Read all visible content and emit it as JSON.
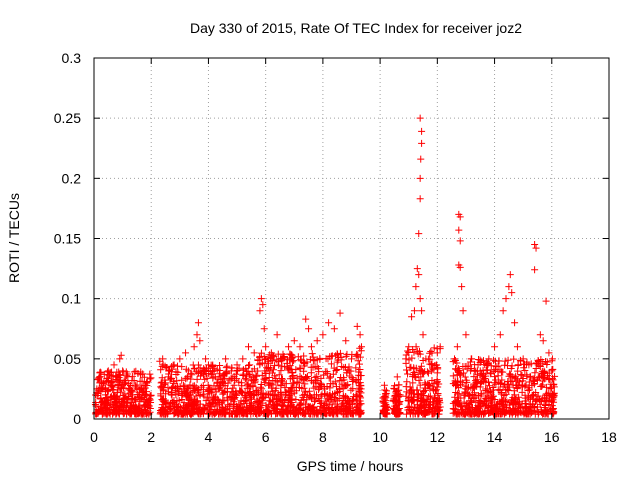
{
  "chart_data": {
    "type": "scatter",
    "title": "Day 330 of 2015, Rate Of TEC Index for receiver joz2",
    "xlabel": "GPS time / hours",
    "ylabel": "ROTI / TECUs",
    "xlim": [
      0,
      18
    ],
    "ylim": [
      0,
      0.3
    ],
    "xticks": [
      0,
      2,
      4,
      6,
      8,
      10,
      12,
      14,
      16,
      18
    ],
    "xtick_labels": [
      "0",
      "2",
      "4",
      "6",
      "8",
      "10",
      "12",
      "14",
      "16",
      "18"
    ],
    "yticks": [
      0,
      0.05,
      0.1,
      0.15,
      0.2,
      0.25,
      0.3
    ],
    "ytick_labels": [
      "0",
      "0.05",
      "0.1",
      "0.15",
      "0.2",
      "0.25",
      "0.3"
    ],
    "grid": true,
    "marker": "plus",
    "marker_color": "#ff0000",
    "series": [
      {
        "name": "ROTI",
        "points": [
          [
            0.05,
            0.012
          ],
          [
            0.1,
            0.025
          ],
          [
            0.15,
            0.008
          ],
          [
            0.2,
            0.03
          ],
          [
            0.3,
            0.015
          ],
          [
            0.4,
            0.02
          ],
          [
            0.5,
            0.04
          ],
          [
            0.6,
            0.03
          ],
          [
            0.7,
            0.045
          ],
          [
            0.8,
            0.035
          ],
          [
            0.9,
            0.05
          ],
          [
            0.95,
            0.053
          ],
          [
            1.0,
            0.04
          ],
          [
            1.1,
            0.03
          ],
          [
            1.2,
            0.025
          ],
          [
            1.3,
            0.02
          ],
          [
            1.4,
            0.032
          ],
          [
            1.5,
            0.025
          ],
          [
            1.6,
            0.018
          ],
          [
            1.7,
            0.022
          ],
          [
            1.8,
            0.028
          ],
          [
            1.9,
            0.015
          ],
          [
            0.3,
            0.005
          ],
          [
            0.6,
            0.008
          ],
          [
            0.9,
            0.01
          ],
          [
            1.2,
            0.006
          ],
          [
            1.5,
            0.009
          ],
          [
            1.8,
            0.007
          ],
          [
            2.3,
            0.048
          ],
          [
            2.4,
            0.05
          ],
          [
            2.5,
            0.03
          ],
          [
            2.6,
            0.035
          ],
          [
            2.8,
            0.045
          ],
          [
            3.0,
            0.05
          ],
          [
            3.2,
            0.055
          ],
          [
            3.3,
            0.04
          ],
          [
            3.5,
            0.06
          ],
          [
            3.6,
            0.07
          ],
          [
            3.65,
            0.08
          ],
          [
            3.7,
            0.065
          ],
          [
            3.9,
            0.05
          ],
          [
            4.0,
            0.045
          ],
          [
            4.2,
            0.04
          ],
          [
            4.4,
            0.035
          ],
          [
            4.6,
            0.05
          ],
          [
            4.8,
            0.04
          ],
          [
            5.0,
            0.045
          ],
          [
            5.2,
            0.05
          ],
          [
            5.4,
            0.06
          ],
          [
            5.6,
            0.055
          ],
          [
            2.5,
            0.01
          ],
          [
            2.9,
            0.015
          ],
          [
            3.3,
            0.012
          ],
          [
            3.7,
            0.02
          ],
          [
            4.1,
            0.01
          ],
          [
            4.5,
            0.015
          ],
          [
            4.9,
            0.012
          ],
          [
            5.3,
            0.018
          ],
          [
            5.8,
            0.09
          ],
          [
            5.85,
            0.1
          ],
          [
            5.9,
            0.095
          ],
          [
            5.95,
            0.075
          ],
          [
            6.0,
            0.06
          ],
          [
            6.2,
            0.055
          ],
          [
            6.4,
            0.07
          ],
          [
            6.6,
            0.05
          ],
          [
            6.8,
            0.06
          ],
          [
            7.0,
            0.065
          ],
          [
            7.2,
            0.06
          ],
          [
            7.4,
            0.083
          ],
          [
            7.5,
            0.075
          ],
          [
            7.6,
            0.06
          ],
          [
            7.8,
            0.065
          ],
          [
            8.0,
            0.07
          ],
          [
            8.2,
            0.08
          ],
          [
            8.4,
            0.075
          ],
          [
            8.6,
            0.088
          ],
          [
            8.8,
            0.065
          ],
          [
            9.0,
            0.05
          ],
          [
            6.1,
            0.02
          ],
          [
            6.5,
            0.015
          ],
          [
            6.9,
            0.025
          ],
          [
            7.3,
            0.018
          ],
          [
            7.7,
            0.02
          ],
          [
            8.1,
            0.015
          ],
          [
            8.5,
            0.022
          ],
          [
            8.9,
            0.01
          ],
          [
            9.2,
            0.077
          ],
          [
            9.3,
            0.07
          ],
          [
            9.35,
            0.06
          ],
          [
            9.25,
            0.03
          ],
          [
            9.3,
            0.015
          ],
          [
            9.2,
            0.008
          ],
          [
            10.1,
            0.015
          ],
          [
            10.15,
            0.028
          ],
          [
            10.2,
            0.012
          ],
          [
            10.5,
            0.025
          ],
          [
            10.6,
            0.035
          ],
          [
            10.7,
            0.02
          ],
          [
            10.9,
            0.05
          ],
          [
            11.0,
            0.06
          ],
          [
            11.1,
            0.085
          ],
          [
            11.2,
            0.09
          ],
          [
            11.25,
            0.11
          ],
          [
            11.3,
            0.125
          ],
          [
            11.35,
            0.12
          ],
          [
            11.4,
            0.1
          ],
          [
            11.45,
            0.09
          ],
          [
            11.5,
            0.07
          ],
          [
            11.6,
            0.05
          ],
          [
            11.8,
            0.04
          ],
          [
            12.0,
            0.055
          ],
          [
            12.1,
            0.06
          ],
          [
            11.35,
            0.154
          ],
          [
            11.4,
            0.183
          ],
          [
            11.4,
            0.2
          ],
          [
            11.42,
            0.216
          ],
          [
            11.45,
            0.229
          ],
          [
            11.45,
            0.239
          ],
          [
            11.4,
            0.25
          ],
          [
            11.0,
            0.015
          ],
          [
            11.3,
            0.02
          ],
          [
            11.6,
            0.012
          ],
          [
            11.9,
            0.018
          ],
          [
            12.1,
            0.01
          ],
          [
            12.6,
            0.05
          ],
          [
            12.7,
            0.06
          ],
          [
            12.75,
            0.17
          ],
          [
            12.8,
            0.168
          ],
          [
            12.75,
            0.157
          ],
          [
            12.8,
            0.148
          ],
          [
            12.75,
            0.128
          ],
          [
            12.8,
            0.126
          ],
          [
            12.85,
            0.11
          ],
          [
            12.9,
            0.09
          ],
          [
            13.0,
            0.07
          ],
          [
            13.2,
            0.05
          ],
          [
            13.4,
            0.04
          ],
          [
            13.6,
            0.035
          ],
          [
            13.8,
            0.05
          ],
          [
            14.0,
            0.06
          ],
          [
            14.2,
            0.07
          ],
          [
            14.3,
            0.09
          ],
          [
            14.4,
            0.1
          ],
          [
            14.5,
            0.11
          ],
          [
            14.55,
            0.12
          ],
          [
            14.6,
            0.105
          ],
          [
            14.7,
            0.08
          ],
          [
            14.8,
            0.06
          ],
          [
            15.0,
            0.05
          ],
          [
            15.2,
            0.045
          ],
          [
            15.4,
            0.145
          ],
          [
            15.45,
            0.142
          ],
          [
            15.4,
            0.124
          ],
          [
            15.6,
            0.07
          ],
          [
            15.7,
            0.065
          ],
          [
            15.8,
            0.098
          ],
          [
            15.9,
            0.055
          ],
          [
            16.0,
            0.04
          ],
          [
            12.7,
            0.015
          ],
          [
            13.1,
            0.02
          ],
          [
            13.5,
            0.01
          ],
          [
            13.9,
            0.018
          ],
          [
            14.3,
            0.012
          ],
          [
            14.7,
            0.02
          ],
          [
            15.1,
            0.015
          ],
          [
            15.5,
            0.01
          ],
          [
            15.9,
            0.012
          ]
        ]
      }
    ],
    "dense_bands": [
      {
        "x_start": 0.05,
        "x_end": 2.0,
        "y_max": 0.04
      },
      {
        "x_start": 2.3,
        "x_end": 5.7,
        "y_max": 0.045
      },
      {
        "x_start": 5.7,
        "x_end": 9.1,
        "y_max": 0.055
      },
      {
        "x_start": 9.15,
        "x_end": 9.35,
        "y_max": 0.06
      },
      {
        "x_start": 10.1,
        "x_end": 10.25,
        "y_max": 0.025
      },
      {
        "x_start": 10.45,
        "x_end": 10.7,
        "y_max": 0.03
      },
      {
        "x_start": 10.9,
        "x_end": 12.1,
        "y_max": 0.06
      },
      {
        "x_start": 12.55,
        "x_end": 16.1,
        "y_max": 0.05
      }
    ]
  }
}
